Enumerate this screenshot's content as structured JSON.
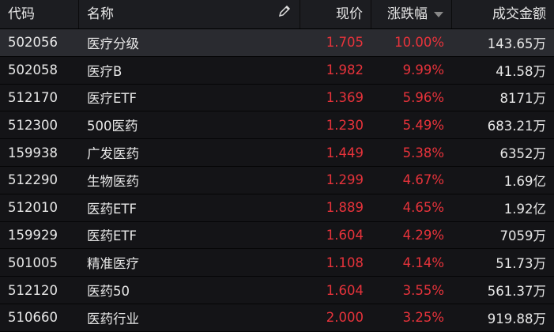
{
  "header": {
    "code": "代码",
    "name": "名称",
    "price": "现价",
    "change": "涨跌幅",
    "amount": "成交金额",
    "edit_icon": "pencil-icon",
    "sort_icon": "sort-desc-icon"
  },
  "colors": {
    "up": "#e8333b",
    "text": "#e8e8e8",
    "bg": "#141417",
    "selected": "#2a2b30"
  },
  "rows": [
    {
      "code": "502056",
      "name": "医疗分级",
      "price": "1.705",
      "change": "10.00%",
      "amount": "143.65万"
    },
    {
      "code": "502058",
      "name": "医疗B",
      "price": "1.982",
      "change": "9.99%",
      "amount": "41.58万"
    },
    {
      "code": "512170",
      "name": "医疗ETF",
      "price": "1.369",
      "change": "5.96%",
      "amount": "8171万"
    },
    {
      "code": "512300",
      "name": "500医药",
      "price": "1.230",
      "change": "5.49%",
      "amount": "683.21万"
    },
    {
      "code": "159938",
      "name": "广发医药",
      "price": "1.449",
      "change": "5.38%",
      "amount": "6352万"
    },
    {
      "code": "512290",
      "name": "生物医药",
      "price": "1.299",
      "change": "4.67%",
      "amount": "1.69亿"
    },
    {
      "code": "512010",
      "name": "医药ETF",
      "price": "1.889",
      "change": "4.65%",
      "amount": "1.92亿"
    },
    {
      "code": "159929",
      "name": "医药ETF",
      "price": "1.604",
      "change": "4.29%",
      "amount": "7059万"
    },
    {
      "code": "501005",
      "name": "精准医疗",
      "price": "1.108",
      "change": "4.14%",
      "amount": "51.73万"
    },
    {
      "code": "512120",
      "name": "医药50",
      "price": "1.604",
      "change": "3.55%",
      "amount": "561.37万"
    },
    {
      "code": "510660",
      "name": "医药行业",
      "price": "2.000",
      "change": "3.25%",
      "amount": "919.88万"
    }
  ]
}
